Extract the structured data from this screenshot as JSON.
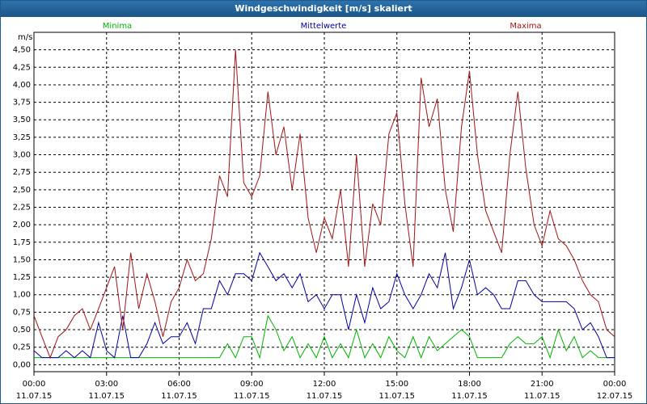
{
  "window_title": "Windgeschwindigkeit [m/s] skaliert",
  "chart_data": {
    "type": "line",
    "ylabel": "m/s",
    "x": [
      0,
      0.33,
      0.67,
      1,
      1.33,
      1.67,
      2,
      2.33,
      2.67,
      3,
      3.33,
      3.67,
      4,
      4.33,
      4.67,
      5,
      5.33,
      5.67,
      6,
      6.33,
      6.67,
      7,
      7.33,
      7.67,
      8,
      8.33,
      8.67,
      9,
      9.33,
      9.67,
      10,
      10.33,
      10.67,
      11,
      11.33,
      11.67,
      12,
      12.33,
      12.67,
      13,
      13.33,
      13.67,
      14,
      14.33,
      14.67,
      15,
      15.33,
      15.67,
      16,
      16.33,
      16.67,
      17,
      17.33,
      17.67,
      18,
      18.33,
      18.67,
      19,
      19.33,
      19.67,
      20,
      20.33,
      20.67,
      21,
      21.33,
      21.67,
      22,
      22.33,
      22.67,
      23,
      23.33,
      23.67,
      24
    ],
    "series": [
      {
        "name": "Minima",
        "color": "#00b400",
        "values": [
          0.1,
          0.1,
          0.1,
          0.1,
          0.1,
          0.1,
          0.1,
          0.1,
          0.1,
          0.1,
          0.1,
          0.1,
          0.1,
          0.1,
          0.1,
          0.1,
          0.1,
          0.1,
          0.1,
          0.1,
          0.1,
          0.1,
          0.1,
          0.1,
          0.3,
          0.1,
          0.4,
          0.4,
          0.1,
          0.7,
          0.5,
          0.2,
          0.4,
          0.1,
          0.3,
          0.1,
          0.4,
          0.1,
          0.3,
          0.1,
          0.5,
          0.1,
          0.3,
          0.1,
          0.4,
          0.2,
          0.1,
          0.4,
          0.1,
          0.4,
          0.2,
          0.3,
          0.4,
          0.5,
          0.4,
          0.1,
          0.1,
          0.1,
          0.1,
          0.3,
          0.4,
          0.3,
          0.3,
          0.4,
          0.1,
          0.5,
          0.2,
          0.4,
          0.1,
          0.2,
          0.1,
          0.1,
          0.1
        ]
      },
      {
        "name": "Mittelwerte",
        "color": "#0000a0",
        "values": [
          0.2,
          0.1,
          0.1,
          0.1,
          0.2,
          0.1,
          0.2,
          0.1,
          0.6,
          0.2,
          0.1,
          0.7,
          0.1,
          0.1,
          0.3,
          0.6,
          0.3,
          0.4,
          0.4,
          0.6,
          0.3,
          0.8,
          0.8,
          1.2,
          1.0,
          1.3,
          1.3,
          1.2,
          1.6,
          1.4,
          1.2,
          1.3,
          1.1,
          1.3,
          0.9,
          1.0,
          0.8,
          1.0,
          1.0,
          0.5,
          1.0,
          0.6,
          1.1,
          0.8,
          0.9,
          1.3,
          1.0,
          0.8,
          1.0,
          1.3,
          1.1,
          1.6,
          0.8,
          1.1,
          1.5,
          1.0,
          1.1,
          1.0,
          0.8,
          0.8,
          1.2,
          1.2,
          1.0,
          0.9,
          0.9,
          0.9,
          0.9,
          0.8,
          0.5,
          0.6,
          0.4,
          0.1,
          0.1
        ]
      },
      {
        "name": "Maxima",
        "color": "#a01414",
        "values": [
          0.7,
          0.4,
          0.1,
          0.4,
          0.5,
          0.7,
          0.8,
          0.5,
          0.8,
          1.1,
          1.4,
          0.5,
          1.6,
          0.8,
          1.3,
          0.9,
          0.4,
          0.9,
          1.1,
          1.5,
          1.2,
          1.3,
          1.8,
          2.7,
          2.4,
          4.5,
          2.6,
          2.4,
          2.7,
          3.9,
          3.0,
          3.4,
          2.5,
          3.3,
          2.1,
          1.6,
          2.1,
          1.8,
          2.5,
          1.4,
          3.0,
          1.4,
          2.3,
          2.0,
          3.3,
          3.6,
          2.3,
          1.4,
          4.1,
          3.4,
          3.8,
          2.5,
          1.9,
          3.4,
          4.2,
          3.0,
          2.2,
          1.9,
          1.6,
          3.0,
          3.9,
          2.8,
          2.0,
          1.7,
          2.2,
          1.8,
          1.7,
          1.5,
          1.2,
          1.0,
          0.9,
          0.5,
          0.4
        ]
      }
    ],
    "xlim": [
      0,
      24
    ],
    "xticks": [
      {
        "value": 0,
        "label": "00:00"
      },
      {
        "value": 3,
        "label": "03:00"
      },
      {
        "value": 6,
        "label": "06:00"
      },
      {
        "value": 9,
        "label": "09:00"
      },
      {
        "value": 12,
        "label": "12:00"
      },
      {
        "value": 15,
        "label": "15:00"
      },
      {
        "value": 18,
        "label": "18:00"
      },
      {
        "value": 21,
        "label": "21:00"
      },
      {
        "value": 24,
        "label": "00:00"
      }
    ],
    "xtick_dates": [
      "11.07.15",
      "11.07.15",
      "11.07.15",
      "11.07.15",
      "11.07.15",
      "11.07.15",
      "11.07.15",
      "11.07.15",
      "12.07.15"
    ],
    "ylim": [
      -0.1,
      4.75
    ],
    "yticks": [
      {
        "value": 0,
        "label": "0,00"
      },
      {
        "value": 0.25,
        "label": "0,25"
      },
      {
        "value": 0.5,
        "label": "0,50"
      },
      {
        "value": 0.75,
        "label": "0,75"
      },
      {
        "value": 1,
        "label": "1,00"
      },
      {
        "value": 1.25,
        "label": "1,25"
      },
      {
        "value": 1.5,
        "label": "1,50"
      },
      {
        "value": 1.75,
        "label": "1,75"
      },
      {
        "value": 2,
        "label": "2,00"
      },
      {
        "value": 2.25,
        "label": "2,25"
      },
      {
        "value": 2.5,
        "label": "2,50"
      },
      {
        "value": 2.75,
        "label": "2,75"
      },
      {
        "value": 3,
        "label": "3,00"
      },
      {
        "value": 3.25,
        "label": "3,25"
      },
      {
        "value": 3.5,
        "label": "3,50"
      },
      {
        "value": 3.75,
        "label": "3,75"
      },
      {
        "value": 4,
        "label": "4,00"
      },
      {
        "value": 4.25,
        "label": "4,25"
      },
      {
        "value": 4.5,
        "label": "4,50"
      }
    ],
    "grid": true
  }
}
